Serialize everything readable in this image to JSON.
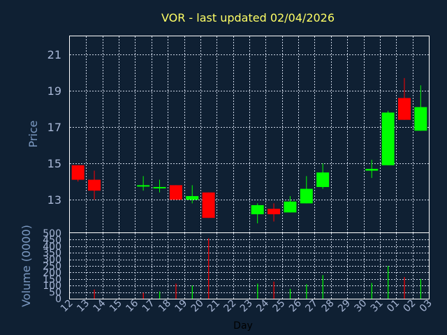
{
  "title": "VOR - last updated 02/04/2026",
  "colors": {
    "background": "#0f2033",
    "grid": "#cfd8e8",
    "up": "#00ff00",
    "down": "#ff0000",
    "title": "#ffff66",
    "ticks": "#a8b7d6",
    "axis_label": "#7d9bc4"
  },
  "chart_data": [
    {
      "type": "candlestick",
      "title": "VOR - last updated 02/04/2026",
      "ylabel": "Price",
      "ylim": [
        11.2,
        22.0
      ],
      "yticks": [
        13,
        15,
        17,
        19,
        21
      ],
      "grid": true,
      "x": [
        "12",
        "13",
        "14",
        "15",
        "16",
        "17",
        "18",
        "19",
        "20",
        "21",
        "22",
        "23",
        "24",
        "25",
        "26",
        "27",
        "28",
        "29",
        "30",
        "31",
        "01",
        "02",
        "03"
      ],
      "candles": [
        {
          "x": "12",
          "open": 14.9,
          "high": 14.9,
          "low": 14.0,
          "close": 14.1
        },
        {
          "x": "13",
          "open": 14.1,
          "high": 14.6,
          "low": 13.0,
          "close": 13.5
        },
        {
          "x": "16",
          "open": 13.8,
          "high": 14.3,
          "low": 13.5,
          "close": 13.8
        },
        {
          "x": "17",
          "open": 13.7,
          "high": 14.1,
          "low": 13.4,
          "close": 13.7
        },
        {
          "x": "18",
          "open": 13.8,
          "high": 13.8,
          "low": 13.0,
          "close": 13.0
        },
        {
          "x": "19",
          "open": 13.0,
          "high": 13.8,
          "low": 12.8,
          "close": 13.2
        },
        {
          "x": "20",
          "open": 13.4,
          "high": 13.4,
          "low": 12.0,
          "close": 12.0
        },
        {
          "x": "23",
          "open": 12.2,
          "high": 12.8,
          "low": 11.7,
          "close": 12.7
        },
        {
          "x": "24",
          "open": 12.5,
          "high": 12.8,
          "low": 11.8,
          "close": 12.2
        },
        {
          "x": "25",
          "open": 12.3,
          "high": 13.2,
          "low": 12.3,
          "close": 12.9
        },
        {
          "x": "26",
          "open": 12.8,
          "high": 14.3,
          "low": 12.8,
          "close": 13.6
        },
        {
          "x": "27",
          "open": 13.7,
          "high": 15.0,
          "low": 13.6,
          "close": 14.5
        },
        {
          "x": "30",
          "open": 14.6,
          "high": 15.2,
          "low": 14.2,
          "close": 14.7
        },
        {
          "x": "31",
          "open": 14.9,
          "high": 17.9,
          "low": 14.9,
          "close": 17.8
        },
        {
          "x": "01",
          "open": 18.6,
          "high": 19.7,
          "low": 17.4,
          "close": 17.4
        },
        {
          "x": "02",
          "open": 16.8,
          "high": 19.3,
          "low": 16.8,
          "close": 18.1
        }
      ]
    },
    {
      "type": "bar",
      "ylabel": "Volume (0000)",
      "xlabel": "Day",
      "ylim": [
        0,
        500
      ],
      "yticks": [
        0,
        50,
        100,
        150,
        200,
        250,
        300,
        350,
        400,
        450,
        500
      ],
      "grid": true,
      "x": [
        "12",
        "13",
        "14",
        "15",
        "16",
        "17",
        "18",
        "19",
        "20",
        "21",
        "22",
        "23",
        "24",
        "25",
        "26",
        "27",
        "28",
        "29",
        "30",
        "31",
        "01",
        "02",
        "03"
      ],
      "bars": [
        {
          "x": "13",
          "value": 70,
          "direction": "down"
        },
        {
          "x": "16",
          "value": 45,
          "direction": "down"
        },
        {
          "x": "17",
          "value": 55,
          "direction": "up"
        },
        {
          "x": "18",
          "value": 115,
          "direction": "down"
        },
        {
          "x": "19",
          "value": 100,
          "direction": "up"
        },
        {
          "x": "20",
          "value": 460,
          "direction": "down"
        },
        {
          "x": "23",
          "value": 115,
          "direction": "up"
        },
        {
          "x": "24",
          "value": 130,
          "direction": "down"
        },
        {
          "x": "25",
          "value": 75,
          "direction": "up"
        },
        {
          "x": "26",
          "value": 110,
          "direction": "up"
        },
        {
          "x": "27",
          "value": 180,
          "direction": "up"
        },
        {
          "x": "30",
          "value": 120,
          "direction": "up"
        },
        {
          "x": "31",
          "value": 250,
          "direction": "up"
        },
        {
          "x": "01",
          "value": 165,
          "direction": "down"
        },
        {
          "x": "02",
          "value": 150,
          "direction": "up"
        }
      ]
    }
  ]
}
